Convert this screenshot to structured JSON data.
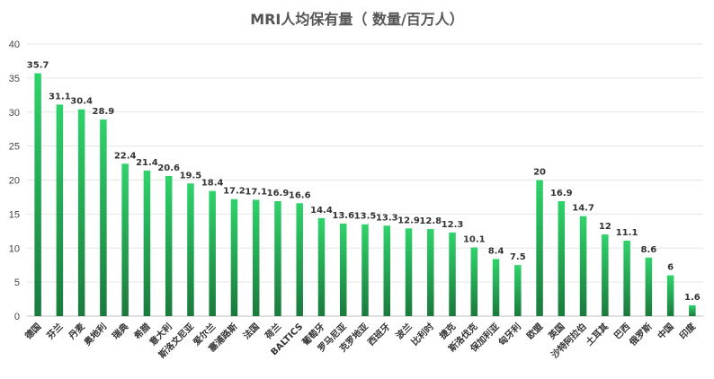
{
  "chart_data": {
    "type": "bar",
    "title": "MRI人均保有量（ 数量/百万人）",
    "xlabel": "",
    "ylabel": "",
    "ylim": [
      0,
      40
    ],
    "yticks": [
      0,
      5,
      10,
      15,
      20,
      25,
      30,
      35,
      40
    ],
    "grid": true,
    "legend": "none",
    "categories": [
      "德国",
      "芬兰",
      "丹麦",
      "奥地利",
      "瑞典",
      "希腊",
      "意大利",
      "斯洛文尼亚",
      "爱尔兰",
      "塞浦路斯",
      "法国",
      "荷兰",
      "BALTICS",
      "葡萄牙",
      "罗马尼亚",
      "克罗地亚",
      "西班牙",
      "波兰",
      "比利时",
      "捷克",
      "斯洛伐克",
      "保加利亚",
      "匈牙利",
      "欧盟",
      "英国",
      "沙特阿拉伯",
      "土耳其",
      "巴西",
      "俄罗斯",
      "中国",
      "印度"
    ],
    "values": [
      35.7,
      31.1,
      30.4,
      28.9,
      22.4,
      21.4,
      20.6,
      19.5,
      18.4,
      17.2,
      17.1,
      16.9,
      16.6,
      14.4,
      13.6,
      13.5,
      13.3,
      12.9,
      12.8,
      12.3,
      10.1,
      8.4,
      7.5,
      20,
      16.9,
      14.7,
      12,
      11.1,
      8.6,
      6,
      1.6
    ],
    "value_labels": [
      "35.7",
      "31.1",
      "30.4",
      "28.9",
      "22.4",
      "21.4",
      "20.6",
      "19.5",
      "18.4",
      "17.2",
      "17.1",
      "16.9",
      "16.6",
      "14.4",
      "13.6",
      "13.5",
      "13.3",
      "12.9",
      "12.8",
      "12.3",
      "10.1",
      "8.4",
      "7.5",
      "20",
      "16.9",
      "14.7",
      "12",
      "11.1",
      "8.6",
      "6",
      "1.6"
    ],
    "colors": {
      "bar_top": "#2fd36b",
      "bar_bottom": "#1a7a3c"
    }
  }
}
